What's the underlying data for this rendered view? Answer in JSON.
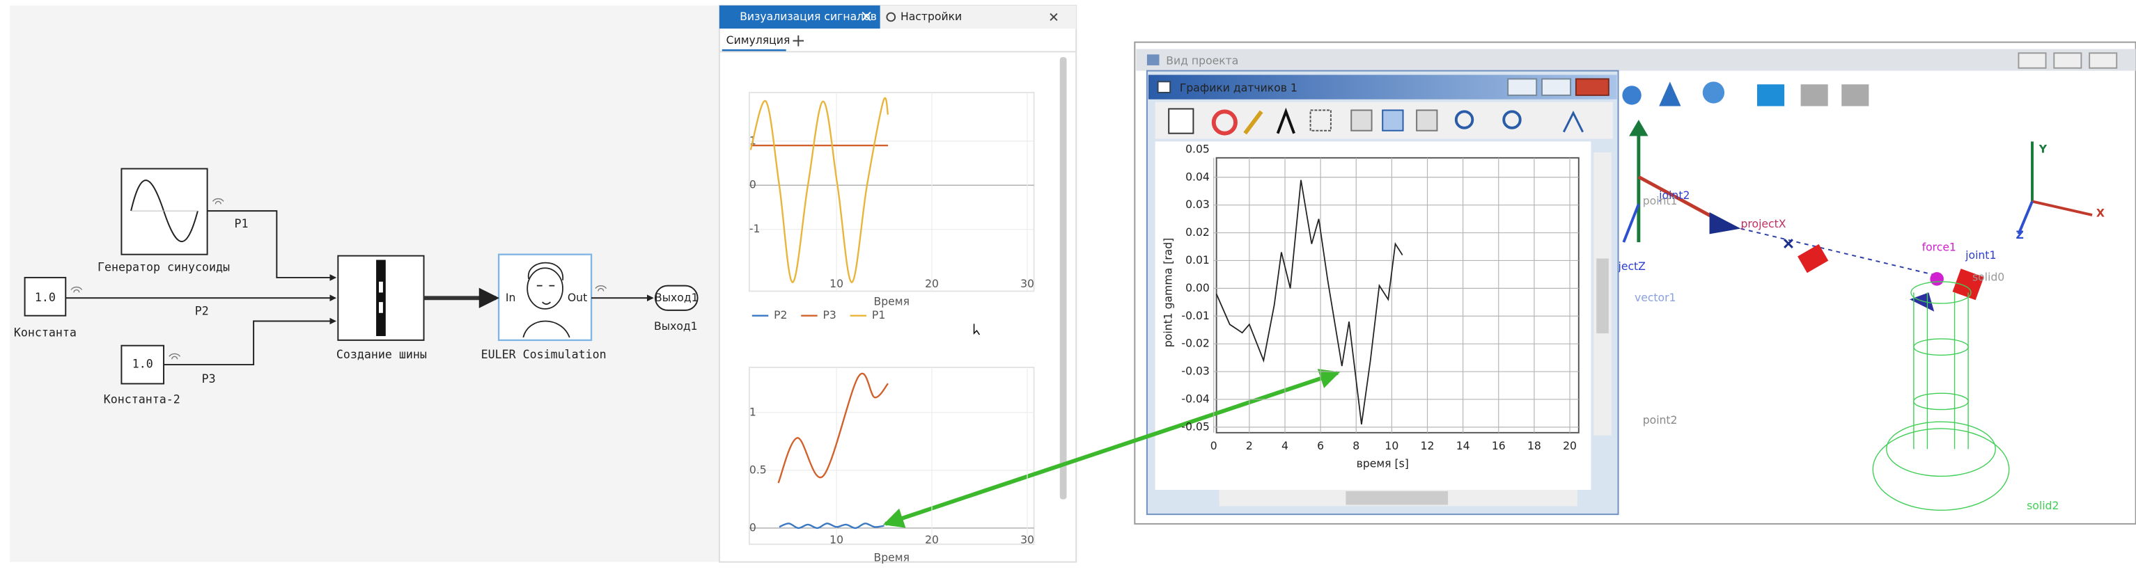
{
  "diagram": {
    "generator": {
      "label": "Генератор синусоиды"
    },
    "constant": {
      "value": "1.0",
      "label": "Константа"
    },
    "constant2": {
      "value": "1.0",
      "label": "Константа-2"
    },
    "bus": {
      "label": "Создание шины"
    },
    "euler": {
      "label": "EULER Cosimulation",
      "in": "In",
      "out": "Out"
    },
    "output": {
      "port": "Выход1",
      "label": "Выход1"
    },
    "signals": {
      "p1": "P1",
      "p2": "P2",
      "p3": "P3"
    }
  },
  "signal_panel": {
    "tabs": [
      "Визуализация сигналов",
      "Настройки"
    ],
    "subtab": "Симуляция",
    "legend": [
      {
        "name": "P2",
        "color": "#3a78c3"
      },
      {
        "name": "P3",
        "color": "#d2602b"
      },
      {
        "name": "P1",
        "color": "#e8b43a"
      }
    ],
    "charts": [
      {
        "type": "line",
        "xlabel": "Время",
        "grid": true,
        "smooth": true,
        "xlim": [
          0.86,
          30.7
        ],
        "ylim": [
          -2.4,
          2.1
        ],
        "xticks": [
          10,
          20,
          30
        ],
        "yticks": [
          -1,
          0,
          1
        ],
        "series": [
          {
            "color": "#d2602b",
            "x": [
              1,
              15.4
            ],
            "values": [
              0.9,
              0.9
            ]
          },
          {
            "color": "#e8b43a",
            "x": [
              1,
              2.6,
              4,
              5.4,
              7,
              8.6,
              10.1,
              11.6,
              13.2,
              14.9,
              15.4
            ],
            "values": [
              0.8,
              1.9,
              0,
              -2.2,
              0,
              1.9,
              0,
              -2.2,
              0,
              1.9,
              1.6
            ]
          }
        ]
      },
      {
        "type": "line",
        "xlabel": "Время",
        "grid": true,
        "smooth": true,
        "xlim": [
          0.86,
          30.7
        ],
        "ylim": [
          -0.14,
          1.39
        ],
        "xticks": [
          10,
          20,
          30
        ],
        "yticks": [
          0,
          0.5,
          1
        ],
        "series": [
          {
            "color": "#d2602b",
            "x": [
              3.9,
              5.9,
              8.6,
              12.3,
              14,
              15.4
            ],
            "values": [
              0.39,
              0.78,
              0.45,
              1.31,
              1.13,
              1.25
            ]
          },
          {
            "color": "#3a78c3",
            "x": [
              4,
              5,
              6,
              7,
              8,
              9,
              10,
              11,
              12,
              13,
              14,
              15
            ],
            "values": [
              0.01,
              0.04,
              0,
              0.03,
              0,
              0.04,
              0.01,
              0.03,
              0,
              0.04,
              0.01,
              0.02
            ]
          }
        ]
      }
    ]
  },
  "sensor_window": {
    "title": "Графики датчиков 1",
    "chart": {
      "type": "line",
      "xlabel": "время  [s]",
      "ylabel": "point1 gamma  [rad]",
      "grid": true,
      "smooth": false,
      "xlim": [
        0,
        20.5
      ],
      "ylim": [
        -0.052,
        0.047
      ],
      "xticks": [
        0,
        2,
        4,
        6,
        8,
        10,
        12,
        14,
        16,
        18,
        20
      ],
      "yticks": [
        0.05,
        0.04,
        0.03,
        0.02,
        0.01,
        {
          "value": 0,
          "label": "0.00"
        },
        -0.01,
        -0.02,
        -0.03,
        -0.04,
        -0.05
      ],
      "series": [
        {
          "color": "#222222",
          "x": [
            0.15,
            0.9,
            1.6,
            2,
            2.8,
            3.4,
            3.8,
            4.3,
            4.9,
            5.5,
            5.9,
            6.4,
            7.2,
            7.6,
            8.3,
            8.8,
            9.3,
            9.8,
            10.2,
            10.6
          ],
          "values": [
            -0.002,
            -0.013,
            -0.016,
            -0.013,
            -0.026,
            -0.006,
            0.013,
            0,
            0.039,
            0.016,
            0.025,
            0.003,
            -0.028,
            -0.012,
            -0.049,
            -0.026,
            0.001,
            -0.004,
            0.016,
            0.012
          ]
        }
      ]
    }
  },
  "project_view": {
    "title": "Вид проекта",
    "labels": {
      "joint2": "joint2",
      "point1": "point1",
      "projectX": "projectX",
      "projectZ": "jectZ",
      "vector1": "vector1",
      "point2": "point2",
      "force1": "force1",
      "joint1": "joint1",
      "solid0": "solid0",
      "solid2": "solid2",
      "axisY": "Y",
      "axisX": "X",
      "axisZ": "Z"
    }
  }
}
